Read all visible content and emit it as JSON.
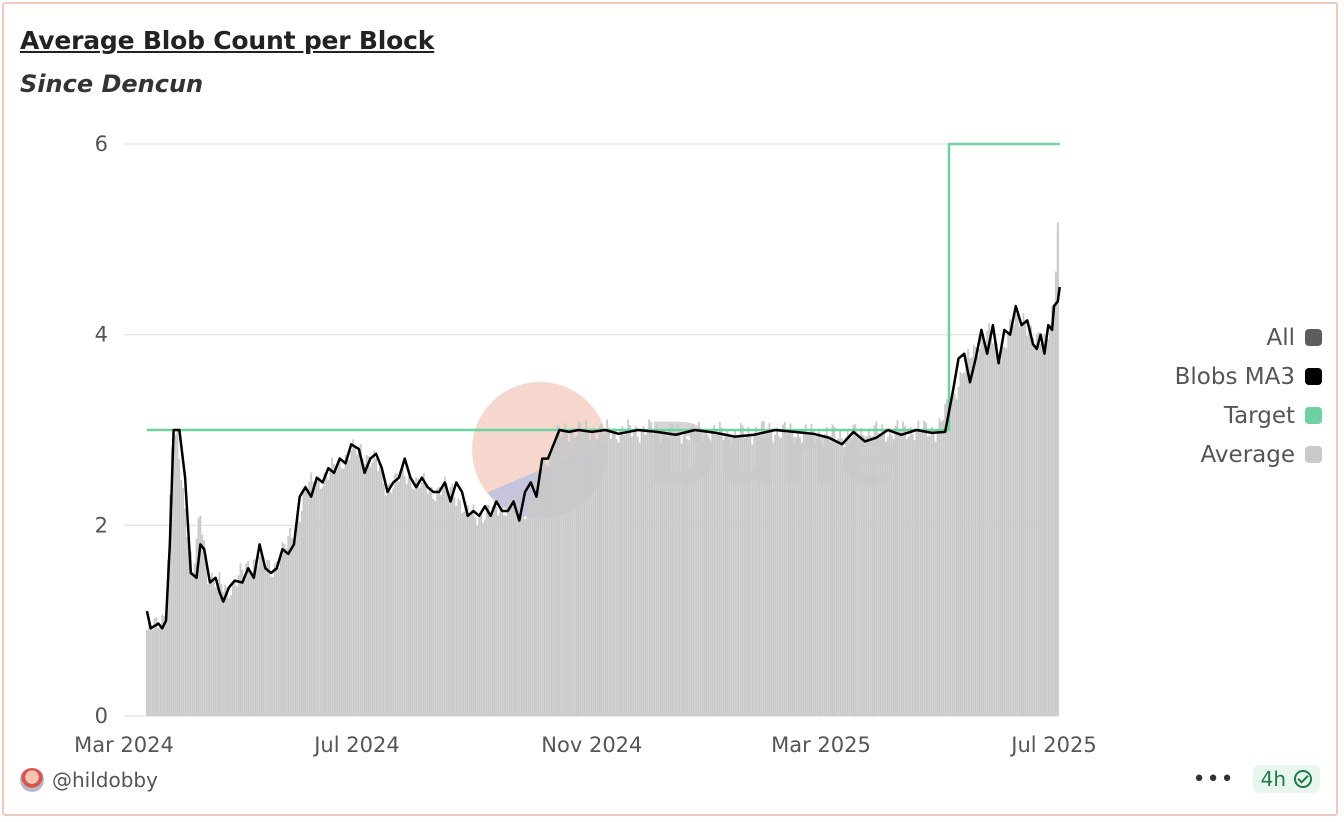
{
  "header": {
    "title": "Average Blob Count per Block",
    "subtitle": "Since Dencun"
  },
  "footer": {
    "username": "@hildobby",
    "more_label": "•••",
    "refresh_label": "4h"
  },
  "watermark": "Dune",
  "colors": {
    "target": "#6fd1a2",
    "ma3": "#000000",
    "average": "#c9c9c9",
    "all": "#5c5c5c"
  },
  "chart_data": {
    "type": "bar",
    "title": "Average Blob Count per Block",
    "subtitle": "Since Dencun",
    "xlabel": "",
    "ylabel": "",
    "ylim": [
      0,
      6.3
    ],
    "yticks": [
      0,
      2,
      4,
      6
    ],
    "xticks": [
      "Mar 2024",
      "Jul 2024",
      "Nov 2024",
      "Mar 2025",
      "Jul 2025"
    ],
    "x_range": [
      "2024-03-13",
      "2025-07-04"
    ],
    "grid": true,
    "legend_position": "right",
    "legend": [
      {
        "name": "All",
        "color": "#5c5c5c"
      },
      {
        "name": "Blobs MA3",
        "color": "#000000"
      },
      {
        "name": "Target",
        "color": "#6fd1a2"
      },
      {
        "name": "Average",
        "color": "#c9c9c9"
      }
    ],
    "series": [
      {
        "name": "Target",
        "type": "step",
        "points": [
          [
            "2024-03-13",
            3
          ],
          [
            "2025-05-07",
            3
          ],
          [
            "2025-05-07",
            6
          ],
          [
            "2025-07-04",
            6
          ]
        ]
      },
      {
        "name": "Blobs MA3",
        "type": "line",
        "points": [
          [
            "2024-03-13",
            1.1
          ],
          [
            "2024-03-15",
            0.92
          ],
          [
            "2024-03-19",
            0.97
          ],
          [
            "2024-03-21",
            0.92
          ],
          [
            "2024-03-23",
            1.0
          ],
          [
            "2024-03-25",
            1.8
          ],
          [
            "2024-03-27",
            3.0
          ],
          [
            "2024-03-30",
            3.0
          ],
          [
            "2024-04-02",
            2.5
          ],
          [
            "2024-04-05",
            1.5
          ],
          [
            "2024-04-08",
            1.45
          ],
          [
            "2024-04-10",
            1.8
          ],
          [
            "2024-04-12",
            1.75
          ],
          [
            "2024-04-15",
            1.4
          ],
          [
            "2024-04-18",
            1.45
          ],
          [
            "2024-04-20",
            1.3
          ],
          [
            "2024-04-22",
            1.2
          ],
          [
            "2024-04-25",
            1.35
          ],
          [
            "2024-04-28",
            1.42
          ],
          [
            "2024-05-02",
            1.4
          ],
          [
            "2024-05-05",
            1.55
          ],
          [
            "2024-05-08",
            1.45
          ],
          [
            "2024-05-11",
            1.8
          ],
          [
            "2024-05-14",
            1.55
          ],
          [
            "2024-05-17",
            1.5
          ],
          [
            "2024-05-20",
            1.55
          ],
          [
            "2024-05-23",
            1.75
          ],
          [
            "2024-05-26",
            1.7
          ],
          [
            "2024-05-29",
            1.8
          ],
          [
            "2024-06-01",
            2.3
          ],
          [
            "2024-06-04",
            2.4
          ],
          [
            "2024-06-07",
            2.3
          ],
          [
            "2024-06-10",
            2.5
          ],
          [
            "2024-06-13",
            2.45
          ],
          [
            "2024-06-16",
            2.6
          ],
          [
            "2024-06-19",
            2.55
          ],
          [
            "2024-06-22",
            2.7
          ],
          [
            "2024-06-25",
            2.65
          ],
          [
            "2024-06-28",
            2.85
          ],
          [
            "2024-07-02",
            2.8
          ],
          [
            "2024-07-05",
            2.55
          ],
          [
            "2024-07-08",
            2.7
          ],
          [
            "2024-07-11",
            2.75
          ],
          [
            "2024-07-14",
            2.6
          ],
          [
            "2024-07-17",
            2.35
          ],
          [
            "2024-07-20",
            2.45
          ],
          [
            "2024-07-23",
            2.5
          ],
          [
            "2024-07-26",
            2.7
          ],
          [
            "2024-07-29",
            2.5
          ],
          [
            "2024-08-01",
            2.4
          ],
          [
            "2024-08-04",
            2.5
          ],
          [
            "2024-08-07",
            2.4
          ],
          [
            "2024-08-10",
            2.35
          ],
          [
            "2024-08-13",
            2.35
          ],
          [
            "2024-08-16",
            2.45
          ],
          [
            "2024-08-19",
            2.25
          ],
          [
            "2024-08-22",
            2.45
          ],
          [
            "2024-08-25",
            2.35
          ],
          [
            "2024-08-28",
            2.1
          ],
          [
            "2024-08-31",
            2.15
          ],
          [
            "2024-09-03",
            2.1
          ],
          [
            "2024-09-06",
            2.2
          ],
          [
            "2024-09-09",
            2.1
          ],
          [
            "2024-09-12",
            2.25
          ],
          [
            "2024-09-15",
            2.15
          ],
          [
            "2024-09-18",
            2.15
          ],
          [
            "2024-09-21",
            2.25
          ],
          [
            "2024-09-24",
            2.05
          ],
          [
            "2024-09-27",
            2.35
          ],
          [
            "2024-09-30",
            2.45
          ],
          [
            "2024-10-03",
            2.3
          ],
          [
            "2024-10-06",
            2.7
          ],
          [
            "2024-10-09",
            2.7
          ],
          [
            "2024-10-12",
            2.85
          ],
          [
            "2024-10-15",
            3.0
          ],
          [
            "2024-10-20",
            2.98
          ],
          [
            "2024-10-25",
            3.0
          ],
          [
            "2024-11-01",
            2.98
          ],
          [
            "2024-11-08",
            3.0
          ],
          [
            "2024-11-15",
            2.96
          ],
          [
            "2024-11-25",
            3.0
          ],
          [
            "2024-12-05",
            2.98
          ],
          [
            "2024-12-15",
            2.95
          ],
          [
            "2024-12-25",
            3.0
          ],
          [
            "2025-01-05",
            2.97
          ],
          [
            "2025-01-15",
            2.93
          ],
          [
            "2025-01-25",
            2.95
          ],
          [
            "2025-02-05",
            3.0
          ],
          [
            "2025-02-15",
            2.98
          ],
          [
            "2025-02-25",
            2.96
          ],
          [
            "2025-03-05",
            2.92
          ],
          [
            "2025-03-12",
            2.85
          ],
          [
            "2025-03-18",
            2.98
          ],
          [
            "2025-03-24",
            2.88
          ],
          [
            "2025-03-30",
            2.92
          ],
          [
            "2025-04-05",
            3.0
          ],
          [
            "2025-04-12",
            2.95
          ],
          [
            "2025-04-20",
            3.0
          ],
          [
            "2025-04-28",
            2.97
          ],
          [
            "2025-05-05",
            2.98
          ],
          [
            "2025-05-09",
            3.4
          ],
          [
            "2025-05-12",
            3.75
          ],
          [
            "2025-05-15",
            3.8
          ],
          [
            "2025-05-18",
            3.5
          ],
          [
            "2025-05-21",
            3.75
          ],
          [
            "2025-05-24",
            4.05
          ],
          [
            "2025-05-27",
            3.8
          ],
          [
            "2025-05-30",
            4.1
          ],
          [
            "2025-06-02",
            3.7
          ],
          [
            "2025-06-05",
            4.05
          ],
          [
            "2025-06-08",
            4.0
          ],
          [
            "2025-06-11",
            4.3
          ],
          [
            "2025-06-14",
            4.1
          ],
          [
            "2025-06-17",
            4.15
          ],
          [
            "2025-06-20",
            3.9
          ],
          [
            "2025-06-22",
            3.85
          ],
          [
            "2025-06-24",
            4.0
          ],
          [
            "2025-06-26",
            3.8
          ],
          [
            "2025-06-28",
            4.1
          ],
          [
            "2025-06-30",
            4.05
          ],
          [
            "2025-07-01",
            4.3
          ],
          [
            "2025-07-03",
            4.35
          ],
          [
            "2025-07-04",
            4.5
          ]
        ]
      },
      {
        "name": "Average",
        "type": "bar",
        "points": [
          [
            "2024-03-13",
            0.9
          ],
          [
            "2024-03-18",
            0.95
          ],
          [
            "2024-03-23",
            1.1
          ],
          [
            "2024-03-26",
            2.8
          ],
          [
            "2024-03-29",
            2.9
          ],
          [
            "2024-04-03",
            2.0
          ],
          [
            "2024-04-06",
            1.5
          ],
          [
            "2024-04-10",
            2.1
          ],
          [
            "2024-04-14",
            1.5
          ],
          [
            "2024-04-19",
            1.4
          ],
          [
            "2024-04-24",
            1.3
          ],
          [
            "2024-04-29",
            1.45
          ],
          [
            "2024-05-05",
            1.55
          ],
          [
            "2024-05-11",
            1.7
          ],
          [
            "2024-05-17",
            1.5
          ],
          [
            "2024-05-23",
            1.75
          ],
          [
            "2024-05-29",
            1.9
          ],
          [
            "2024-06-04",
            2.4
          ],
          [
            "2024-06-10",
            2.45
          ],
          [
            "2024-06-16",
            2.55
          ],
          [
            "2024-06-22",
            2.65
          ],
          [
            "2024-06-28",
            2.8
          ],
          [
            "2024-07-04",
            2.75
          ],
          [
            "2024-07-10",
            2.7
          ],
          [
            "2024-07-16",
            2.4
          ],
          [
            "2024-07-22",
            2.5
          ],
          [
            "2024-07-28",
            2.5
          ],
          [
            "2024-08-03",
            2.45
          ],
          [
            "2024-08-09",
            2.35
          ],
          [
            "2024-08-15",
            2.4
          ],
          [
            "2024-08-21",
            2.35
          ],
          [
            "2024-08-27",
            2.15
          ],
          [
            "2024-09-02",
            2.1
          ],
          [
            "2024-09-08",
            2.15
          ],
          [
            "2024-09-14",
            2.2
          ],
          [
            "2024-09-20",
            2.2
          ],
          [
            "2024-09-26",
            2.1
          ],
          [
            "2024-10-02",
            2.4
          ],
          [
            "2024-10-08",
            2.7
          ],
          [
            "2024-10-14",
            2.95
          ],
          [
            "2024-10-20",
            3.0
          ],
          [
            "2024-11-01",
            3.0
          ],
          [
            "2024-11-15",
            2.98
          ],
          [
            "2024-12-01",
            3.0
          ],
          [
            "2024-12-15",
            2.97
          ],
          [
            "2025-01-01",
            2.98
          ],
          [
            "2025-01-15",
            2.95
          ],
          [
            "2025-02-01",
            3.0
          ],
          [
            "2025-02-15",
            2.97
          ],
          [
            "2025-03-01",
            2.95
          ],
          [
            "2025-03-15",
            2.95
          ],
          [
            "2025-04-01",
            2.98
          ],
          [
            "2025-04-15",
            3.0
          ],
          [
            "2025-05-01",
            3.0
          ],
          [
            "2025-05-10",
            3.4
          ],
          [
            "2025-05-16",
            3.7
          ],
          [
            "2025-05-22",
            3.9
          ],
          [
            "2025-05-28",
            4.0
          ],
          [
            "2025-06-03",
            3.8
          ],
          [
            "2025-06-09",
            4.1
          ],
          [
            "2025-06-15",
            4.2
          ],
          [
            "2025-06-21",
            3.9
          ],
          [
            "2025-06-27",
            4.0
          ],
          [
            "2025-07-01",
            4.3
          ],
          [
            "2025-07-03",
            5.1
          ]
        ]
      }
    ]
  }
}
